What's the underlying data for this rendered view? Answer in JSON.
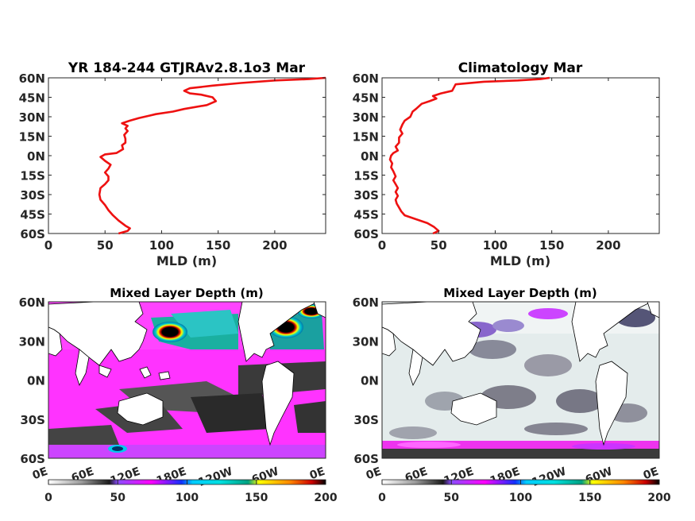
{
  "chart_data": [
    {
      "type": "line",
      "title": "YR 184-244 GTJRAv2.8.1o3 Mar",
      "xlabel": "MLD (m)",
      "ylabel": "",
      "xlim": [
        0,
        245
      ],
      "ylim": [
        -60,
        60
      ],
      "xticks": [
        0,
        50,
        100,
        150,
        200
      ],
      "xtick_labels": [
        "0",
        "50",
        "100",
        "150",
        "200"
      ],
      "yticks": [
        60,
        45,
        30,
        15,
        0,
        -15,
        -30,
        -45,
        -60
      ],
      "ytick_labels": [
        "60N",
        "45N",
        "30N",
        "15N",
        "0N",
        "15S",
        "30S",
        "45S",
        "60S"
      ],
      "grid": false,
      "line_color": "#ee1111",
      "series": [
        {
          "points": [
            [
              245,
              60
            ],
            [
              230,
              59
            ],
            [
              200,
              58
            ],
            [
              170,
              56
            ],
            [
              145,
              54
            ],
            [
              125,
              52
            ],
            [
              120,
              50
            ],
            [
              125,
              48
            ],
            [
              135,
              47
            ],
            [
              145,
              45
            ],
            [
              148,
              42
            ],
            [
              140,
              39
            ],
            [
              120,
              36
            ],
            [
              110,
              34
            ],
            [
              95,
              32
            ],
            [
              90,
              31
            ],
            [
              80,
              29
            ],
            [
              72,
              27
            ],
            [
              65,
              25
            ],
            [
              70,
              23
            ],
            [
              68,
              21
            ],
            [
              70,
              19
            ],
            [
              67,
              16
            ],
            [
              68,
              13
            ],
            [
              68,
              10
            ],
            [
              65,
              8
            ],
            [
              66,
              5
            ],
            [
              60,
              2
            ],
            [
              50,
              1
            ],
            [
              46,
              -1
            ],
            [
              50,
              -4
            ],
            [
              55,
              -7
            ],
            [
              53,
              -10
            ],
            [
              50,
              -13
            ],
            [
              53,
              -16
            ],
            [
              53,
              -19
            ],
            [
              50,
              -22
            ],
            [
              46,
              -25
            ],
            [
              45,
              -30
            ],
            [
              46,
              -34
            ],
            [
              50,
              -38
            ],
            [
              53,
              -42
            ],
            [
              57,
              -46
            ],
            [
              62,
              -50
            ],
            [
              68,
              -54
            ],
            [
              72,
              -56
            ],
            [
              70,
              -58
            ],
            [
              62,
              -60
            ]
          ]
        }
      ]
    },
    {
      "type": "line",
      "title": "Climatology Mar",
      "xlabel": "MLD (m)",
      "ylabel": "",
      "xlim": [
        0,
        245
      ],
      "ylim": [
        -60,
        60
      ],
      "xticks": [
        0,
        50,
        100,
        150,
        200
      ],
      "xtick_labels": [
        "0",
        "50",
        "100",
        "150",
        "200"
      ],
      "yticks": [
        60,
        45,
        30,
        15,
        0,
        -15,
        -30,
        -45,
        -60
      ],
      "ytick_labels": [
        "60N",
        "45N",
        "30N",
        "15N",
        "0N",
        "15S",
        "30S",
        "45S",
        "60S"
      ],
      "grid": false,
      "line_color": "#ee1111",
      "series": [
        {
          "points": [
            [
              148,
              60
            ],
            [
              140,
              59
            ],
            [
              120,
              58
            ],
            [
              90,
              57
            ],
            [
              65,
              55
            ],
            [
              62,
              50
            ],
            [
              52,
              48
            ],
            [
              45,
              46
            ],
            [
              48,
              44
            ],
            [
              42,
              42
            ],
            [
              35,
              40
            ],
            [
              30,
              36
            ],
            [
              27,
              34
            ],
            [
              25,
              30
            ],
            [
              20,
              27
            ],
            [
              18,
              24
            ],
            [
              16,
              20
            ],
            [
              18,
              17
            ],
            [
              15,
              14
            ],
            [
              15,
              10
            ],
            [
              12,
              7
            ],
            [
              14,
              4
            ],
            [
              10,
              2
            ],
            [
              8,
              0
            ],
            [
              7,
              -3
            ],
            [
              9,
              -6
            ],
            [
              8,
              -9
            ],
            [
              10,
              -12
            ],
            [
              12,
              -16
            ],
            [
              10,
              -19
            ],
            [
              12,
              -22
            ],
            [
              14,
              -25
            ],
            [
              12,
              -28
            ],
            [
              14,
              -31
            ],
            [
              12,
              -34
            ],
            [
              13,
              -37
            ],
            [
              15,
              -40
            ],
            [
              17,
              -43
            ],
            [
              20,
              -46
            ],
            [
              30,
              -49
            ],
            [
              40,
              -52
            ],
            [
              46,
              -55
            ],
            [
              50,
              -58
            ],
            [
              45,
              -60
            ]
          ]
        }
      ]
    },
    {
      "type": "heatmap",
      "title": "Mixed Layer Depth (m)",
      "xtick_labels": [
        "0E",
        "60E",
        "120E",
        "180E",
        "120W",
        "60W",
        "0E"
      ],
      "ytick_labels": [
        "60N",
        "30N",
        "0N",
        "30S",
        "60S"
      ],
      "colorbar": {
        "ticks": [
          "0",
          "50",
          "100",
          "150",
          "200"
        ],
        "colors": [
          "#ffffff",
          "#808080",
          "#000000",
          "#7a3cff",
          "#ff00ff",
          "#0044ff",
          "#00ffff",
          "#00aa66",
          "#ffff00",
          "#ff6600",
          "#cc0000",
          "#000000"
        ]
      }
    },
    {
      "type": "heatmap",
      "title": "Mixed Layer Depth (m)",
      "xtick_labels": [
        "0E",
        "60E",
        "120E",
        "180E",
        "120W",
        "60W",
        "0E"
      ],
      "ytick_labels": [
        "60N",
        "30N",
        "0N",
        "30S",
        "60S"
      ],
      "colorbar": {
        "ticks": [
          "0",
          "50",
          "100",
          "150",
          "200"
        ],
        "colors": [
          "#ffffff",
          "#808080",
          "#000000",
          "#7a3cff",
          "#ff00ff",
          "#0044ff",
          "#00ffff",
          "#00aa66",
          "#ffff00",
          "#ff6600",
          "#cc0000",
          "#000000"
        ]
      }
    }
  ]
}
